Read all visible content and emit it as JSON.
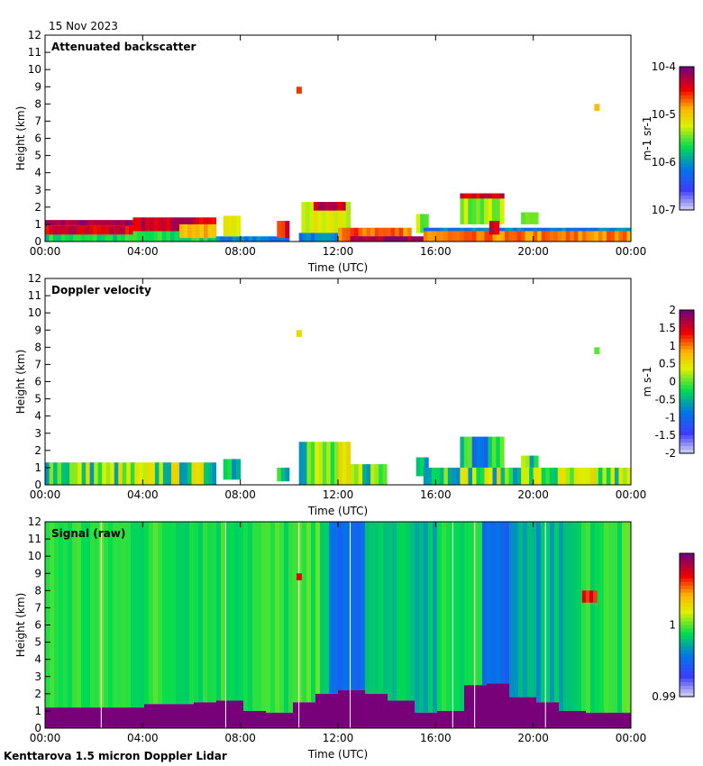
{
  "date_label": "15 Nov 2023",
  "footer": "Kenttarova 1.5 micron Doppler Lidar",
  "chart_data": [
    {
      "type": "heatmap",
      "title": "Attenuated backscatter",
      "xlabel": "Time (UTC)",
      "ylabel": "Height (km)",
      "xlim": [
        0,
        24
      ],
      "ylim": [
        0,
        12
      ],
      "xticks": [
        "00:00",
        "04:00",
        "08:00",
        "12:00",
        "16:00",
        "20:00",
        "00:00"
      ],
      "yticks": [
        "0",
        "1",
        "2",
        "3",
        "4",
        "5",
        "6",
        "7",
        "8",
        "9",
        "10",
        "11",
        "12"
      ],
      "colorbar": {
        "label": "m-1 sr-1",
        "scale": "log",
        "range": [
          1e-07,
          0.0001
        ],
        "ticks": [
          "10-4",
          "10-5",
          "10-6",
          "10-7"
        ]
      },
      "layers": [
        [
          0,
          3.6,
          0,
          0.4,
          0.45
        ],
        [
          0,
          3.6,
          0.4,
          0.9,
          0.88
        ],
        [
          0,
          3.6,
          0.9,
          1.25,
          0.95
        ],
        [
          3.6,
          7,
          0,
          0.6,
          0.45
        ],
        [
          3.6,
          7,
          0.6,
          1.4,
          0.9
        ],
        [
          5.5,
          7,
          0.2,
          1.0,
          0.7
        ],
        [
          7,
          10,
          0,
          0.3,
          0.3
        ],
        [
          7.3,
          8,
          0.3,
          1.5,
          0.6
        ],
        [
          9.5,
          10,
          0.2,
          1.2,
          0.85
        ],
        [
          10.4,
          12.5,
          0,
          0.5,
          0.3
        ],
        [
          10.5,
          12.5,
          0.5,
          2.3,
          0.6
        ],
        [
          11,
          12.3,
          1.8,
          2.3,
          0.9
        ],
        [
          12,
          15,
          0,
          0.8,
          0.78
        ],
        [
          12.5,
          15.5,
          0,
          0.3,
          0.95
        ],
        [
          15.2,
          15.7,
          0.5,
          1.6,
          0.55
        ],
        [
          15.5,
          24,
          0.6,
          0.8,
          0.3
        ],
        [
          15.5,
          24,
          0,
          0.6,
          0.75
        ],
        [
          17,
          18.8,
          1,
          2.8,
          0.55
        ],
        [
          17,
          18.8,
          2.5,
          2.8,
          0.9
        ],
        [
          18.2,
          18.6,
          0.4,
          1.2,
          0.85
        ],
        [
          19.5,
          20.2,
          1,
          1.7,
          0.5
        ],
        [
          10.3,
          10.5,
          8.6,
          9.0,
          0.8
        ],
        [
          22.5,
          22.7,
          7.6,
          8.0,
          0.75
        ]
      ]
    },
    {
      "type": "heatmap",
      "title": "Doppler velocity",
      "xlabel": "Time (UTC)",
      "ylabel": "Height (km)",
      "xlim": [
        0,
        24
      ],
      "ylim": [
        0,
        12
      ],
      "xticks": [
        "00:00",
        "04:00",
        "08:00",
        "12:00",
        "16:00",
        "20:00",
        "00:00"
      ],
      "yticks": [
        "0",
        "1",
        "2",
        "3",
        "4",
        "5",
        "6",
        "7",
        "8",
        "9",
        "10",
        "11",
        "12"
      ],
      "colorbar": {
        "label": "m s-1",
        "range": [
          -2,
          2
        ],
        "ticks": [
          "2",
          "1.5",
          "1",
          "0.5",
          "0",
          "-0.5",
          "-1",
          "-1.5",
          "-2"
        ]
      },
      "layers": [
        [
          0,
          7,
          0,
          1.3,
          0.5
        ],
        [
          7.3,
          8,
          0.3,
          1.5,
          0.45
        ],
        [
          9.5,
          10,
          0.2,
          1.0,
          0.5
        ],
        [
          10.4,
          12.5,
          0,
          2.5,
          0.5
        ],
        [
          12.5,
          14,
          0,
          1.2,
          0.5
        ],
        [
          15.2,
          15.7,
          0.5,
          1.6,
          0.45
        ],
        [
          15.5,
          24,
          0,
          1.0,
          0.5
        ],
        [
          17,
          18.8,
          1,
          2.8,
          0.4
        ],
        [
          19.5,
          20.2,
          1,
          1.7,
          0.45
        ],
        [
          10.3,
          10.5,
          8.6,
          9.0,
          0.65
        ],
        [
          22.5,
          22.7,
          7.6,
          8.0,
          0.55
        ]
      ]
    },
    {
      "type": "heatmap",
      "title": "Signal (raw)",
      "xlabel": "Time (UTC)",
      "ylabel": "Height (km)",
      "xlim": [
        0,
        24
      ],
      "ylim": [
        0,
        12
      ],
      "xticks": [
        "00:00",
        "04:00",
        "08:00",
        "12:00",
        "16:00",
        "20:00",
        "00:00"
      ],
      "yticks": [
        "0",
        "1",
        "2",
        "3",
        "4",
        "5",
        "6",
        "7",
        "8",
        "9",
        "10",
        "11",
        "12"
      ],
      "colorbar": {
        "label": "",
        "range": [
          0.99,
          1.01
        ],
        "ticks": [
          "1",
          "0.99"
        ]
      },
      "surface_height_km": [
        1.2,
        1.2,
        1.2,
        1.2,
        1.4,
        1.4,
        1.5,
        1.6,
        1.0,
        0.9,
        1.5,
        2.0,
        2.2,
        2.0,
        1.6,
        0.9,
        1.0,
        2.5,
        2.6,
        1.8,
        1.5,
        1.0,
        0.9,
        0.9,
        0.9
      ],
      "layers": [
        [
          10.3,
          10.5,
          8.6,
          9.0,
          0.85
        ],
        [
          22,
          22.6,
          7.3,
          8.0,
          0.85
        ]
      ]
    }
  ]
}
